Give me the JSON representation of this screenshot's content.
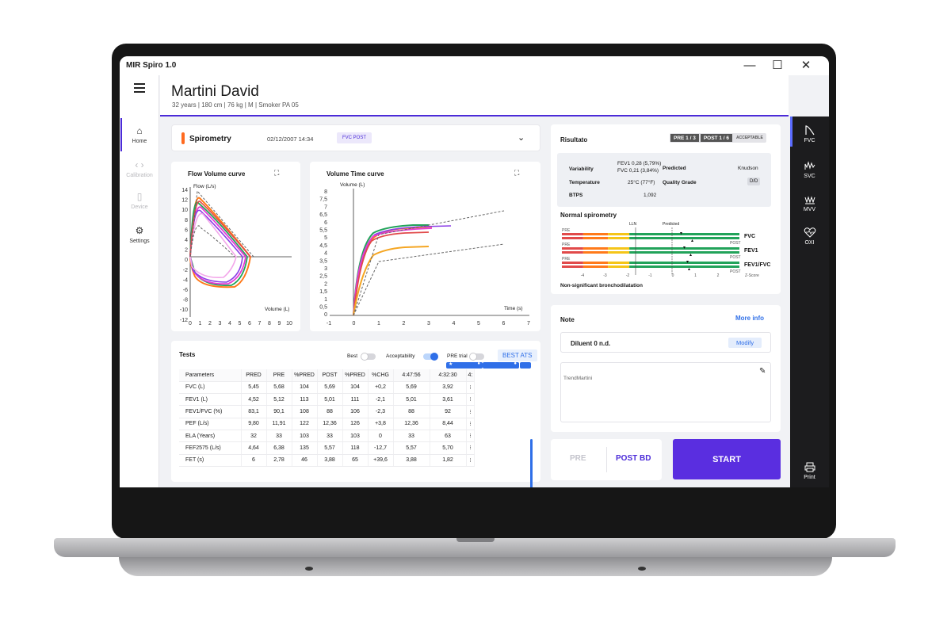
{
  "window": {
    "title": "MIR Spiro 1.0",
    "minimize": "—",
    "maximize": "☐",
    "close": "✕"
  },
  "nav": {
    "home": "Home",
    "calibration": "Calibration",
    "device": "Device",
    "settings": "Settings"
  },
  "patient": {
    "name": "Martini David",
    "info": "32 years  |  180 cm  |  76 kg  |  M  |  Smoker PA 05"
  },
  "right_nav": {
    "fvc": "FVC",
    "svc": "SVC",
    "mvv": "MVV",
    "oxi": "OXI",
    "print": "Print"
  },
  "spirometry": {
    "label": "Spirometry",
    "date": "02/12/2007 14:34",
    "badge": "FVC POST"
  },
  "flow_volume": {
    "title": "Flow Volume curve",
    "ylabel": "Flow (L/s)",
    "xlabel": "Volume (L)",
    "yticks": [
      "14",
      "12",
      "10",
      "8",
      "6",
      "4",
      "2",
      "0",
      "-2",
      "-4",
      "-6",
      "-8",
      "-10",
      "-12"
    ],
    "xticks": [
      "0",
      "1",
      "2",
      "3",
      "4",
      "5",
      "6",
      "7",
      "8",
      "9",
      "10"
    ]
  },
  "volume_time": {
    "title": "Volume Time curve",
    "ylabel": "Volume (L)",
    "xlabel": "Time (s)",
    "yticks": [
      "8",
      "7,5",
      "7",
      "6,5",
      "6",
      "5,5",
      "5",
      "4,5",
      "4",
      "3,5",
      "3",
      "2,5",
      "2",
      "1,5",
      "1",
      "0,5",
      "0"
    ],
    "xticks": [
      "-1",
      "0",
      "1",
      "2",
      "3",
      "4",
      "5",
      "6",
      "7"
    ]
  },
  "tests": {
    "title": "Tests",
    "best_label": "Best",
    "acceptability_label": "Acceptability",
    "pre_trial_label": "PRE trial",
    "best_ats": "BEST ATS",
    "columns": [
      "Parameters",
      "PRED",
      "PRE",
      "%PRED",
      "POST",
      "%PRED",
      "%CHG",
      "4:47:56",
      "4:32:30",
      "4:"
    ],
    "rows": [
      [
        "FVC (L)",
        "5,45",
        "5,68",
        "104",
        "5,69",
        "104",
        "+0,2",
        "5,69",
        "3,92",
        "⁝"
      ],
      [
        "FEV1 (L)",
        "4,52",
        "5,12",
        "113",
        "5,01",
        "111",
        "-2,1",
        "5,01",
        "3,61",
        "⁝"
      ],
      [
        "FEV1/FVC (%)",
        "83,1",
        "90,1",
        "108",
        "88",
        "106",
        "-2,3",
        "88",
        "92",
        "⁝"
      ],
      [
        "PEF (L/s)",
        "9,80",
        "11,91",
        "122",
        "12,36",
        "126",
        "+3,8",
        "12,36",
        "8,44",
        "⁝"
      ],
      [
        "ELA (Years)",
        "32",
        "33",
        "103",
        "33",
        "103",
        "0",
        "33",
        "63",
        "⁝"
      ],
      [
        "FEF2575 (L/s)",
        "4,64",
        "6,38",
        "135",
        "5,57",
        "118",
        "-12,7",
        "5,57",
        "5,70",
        "⁝"
      ],
      [
        "FET (s)",
        "6",
        "2,78",
        "46",
        "3,88",
        "65",
        "+39,6",
        "3,88",
        "1,82",
        "⁝"
      ]
    ]
  },
  "result": {
    "title": "Risultato",
    "pre_badge": "PRE 1 / 3",
    "post_badge": "POST 1 / 6",
    "acceptable_badge": "ACCEPTABLE",
    "variability_label": "Variability",
    "variability_fev1": "FEV1 0,28 (5,79%)",
    "variability_fvc": "FVC  0,21 (3,84%)",
    "predicted_label": "Predicted",
    "predicted_value": "Knudson",
    "temperature_label": "Temperature",
    "temperature_value": "25°C (77°F)",
    "quality_label": "Quality Grade",
    "quality_value": "D/D",
    "btps_label": "BTPS",
    "btps_value": "1,092",
    "normal_title": "Normal spirometry",
    "lln": "LLN",
    "predicted_marker": "Predicted",
    "rows": [
      {
        "label": "FVC",
        "pre": "PRE",
        "post": "POST"
      },
      {
        "label": "FEV1",
        "pre": "PRE",
        "post": "POST"
      },
      {
        "label": "FEV1/FVC",
        "pre": "PRE",
        "post": "POST"
      }
    ],
    "zscore_ticks": [
      "-4",
      "-3",
      "-2",
      "-1",
      "0",
      "1",
      "2"
    ],
    "zscore_label": "Z-Score",
    "conclusion": "Non-significant bronchodilatation"
  },
  "note": {
    "title": "Note",
    "more_info": "More info",
    "diluent": "Diluent 0 n.d.",
    "modify": "Modify",
    "text": "TrendMartini"
  },
  "actions": {
    "pre": "PRE",
    "post_bd": "POST BD",
    "start": "START"
  },
  "colors": {
    "accent": "#4b2bd8",
    "start": "#5a2ee0",
    "green": "#22a35a",
    "red": "#e14a4a",
    "orange": "#ff7a1a",
    "yellow": "#f5c518"
  }
}
